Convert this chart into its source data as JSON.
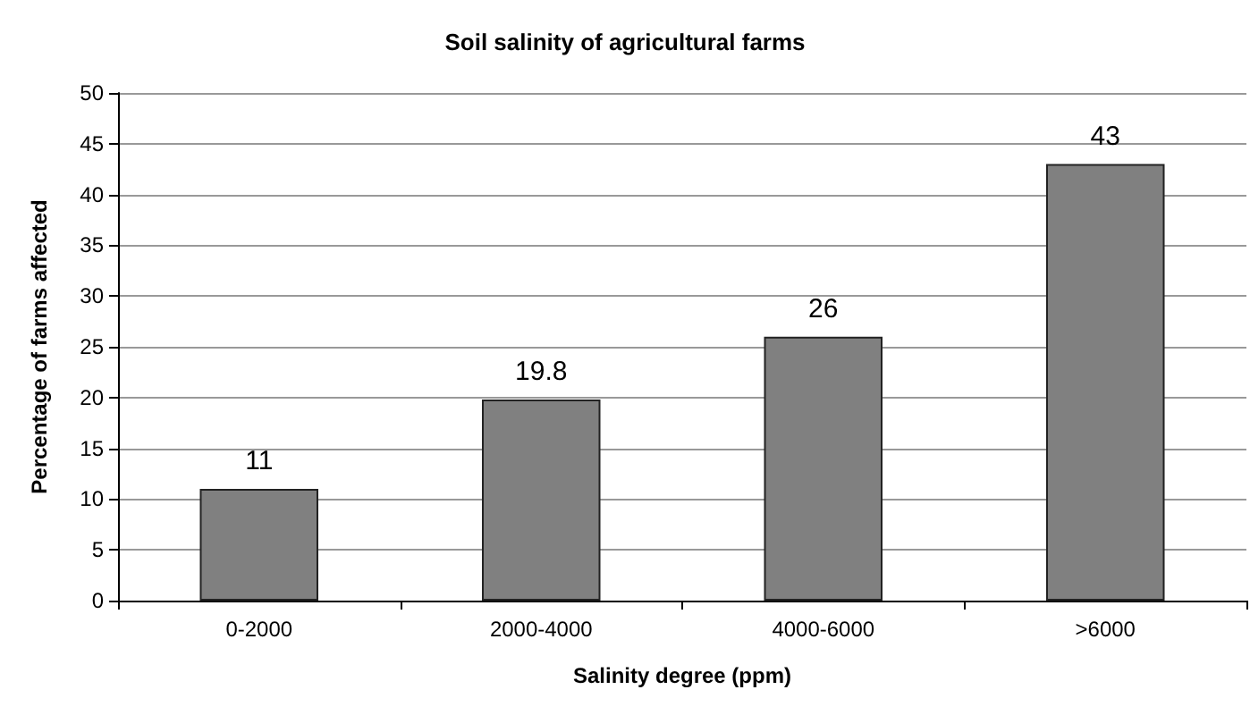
{
  "chart_data": {
    "type": "bar",
    "title": "Soil salinity of agricultural farms",
    "xlabel": "Salinity degree (ppm)",
    "ylabel": "Percentage of farms affected",
    "categories": [
      "0-2000",
      "2000-4000",
      "4000-6000",
      ">6000"
    ],
    "values": [
      11,
      19.8,
      26,
      43
    ],
    "color": "#808080",
    "ylim": [
      0,
      50
    ],
    "yticks": [
      0,
      5,
      10,
      15,
      20,
      25,
      30,
      35,
      40,
      45,
      50
    ],
    "grid": "y",
    "data_labels": true
  }
}
